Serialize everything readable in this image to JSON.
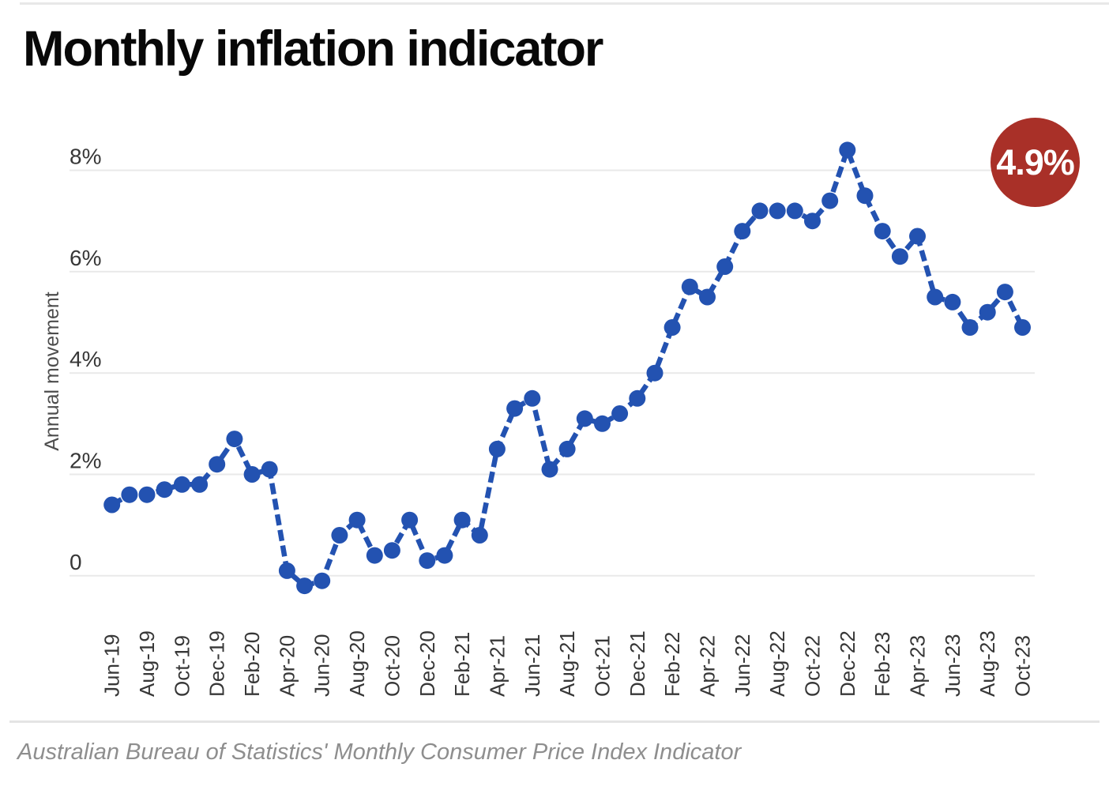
{
  "page": {
    "title": "Monthly inflation indicator",
    "source_note": "Australian Bureau of Statistics' Monthly Consumer Price Index Indicator"
  },
  "badge": {
    "label": "4.9%",
    "background_color": "#a93028",
    "text_color": "#ffffff"
  },
  "chart_data": {
    "type": "line",
    "title": "Monthly inflation indicator",
    "xlabel": "",
    "ylabel": "Annual movement",
    "x": [
      "Jun-19",
      "Jul-19",
      "Aug-19",
      "Sep-19",
      "Oct-19",
      "Nov-19",
      "Dec-19",
      "Jan-20",
      "Feb-20",
      "Mar-20",
      "Apr-20",
      "May-20",
      "Jun-20",
      "Jul-20",
      "Aug-20",
      "Sep-20",
      "Oct-20",
      "Nov-20",
      "Dec-20",
      "Jan-21",
      "Feb-21",
      "Mar-21",
      "Apr-21",
      "May-21",
      "Jun-21",
      "Jul-21",
      "Aug-21",
      "Sep-21",
      "Oct-21",
      "Nov-21",
      "Dec-21",
      "Jan-22",
      "Feb-22",
      "Mar-22",
      "Apr-22",
      "May-22",
      "Jun-22",
      "Jul-22",
      "Aug-22",
      "Sep-22",
      "Oct-22",
      "Nov-22",
      "Dec-22",
      "Jan-23",
      "Feb-23",
      "Mar-23",
      "Apr-23",
      "May-23",
      "Jun-23",
      "Jul-23",
      "Aug-23",
      "Sep-23",
      "Oct-23"
    ],
    "values": [
      1.4,
      1.6,
      1.6,
      1.7,
      1.8,
      1.8,
      2.2,
      2.7,
      2.0,
      2.1,
      0.1,
      -0.2,
      -0.1,
      0.8,
      1.1,
      0.4,
      0.5,
      1.1,
      0.3,
      0.4,
      1.1,
      0.8,
      2.5,
      3.3,
      3.5,
      2.1,
      2.5,
      3.1,
      3.0,
      3.2,
      3.5,
      4.0,
      4.9,
      5.7,
      5.5,
      6.1,
      6.8,
      7.2,
      7.2,
      7.2,
      7.0,
      7.4,
      8.4,
      7.5,
      6.8,
      6.3,
      6.7,
      5.5,
      5.4,
      4.9,
      5.2,
      5.6,
      4.9
    ],
    "x_tick_every": 2,
    "x_tick_labels": [
      "Jun-19",
      "Aug-19",
      "Oct-19",
      "Dec-19",
      "Feb-20",
      "Apr-20",
      "Jun-20",
      "Aug-20",
      "Oct-20",
      "Dec-20",
      "Feb-21",
      "Apr-21",
      "Jun-21",
      "Aug-21",
      "Oct-21",
      "Dec-21",
      "Feb-22",
      "Apr-22",
      "Jun-22",
      "Aug-22",
      "Oct-22",
      "Dec-22",
      "Feb-23",
      "Apr-23",
      "Jun-23",
      "Aug-23",
      "Oct-23"
    ],
    "y_ticks": [
      {
        "label": "8%",
        "value": 8
      },
      {
        "label": "6%",
        "value": 6
      },
      {
        "label": "4%",
        "value": 4
      },
      {
        "label": "2%",
        "value": 2
      },
      {
        "label": "0",
        "value": 0
      }
    ],
    "ylim": [
      -0.6,
      8.8
    ],
    "grid": "horizontal",
    "legend": "none",
    "line_color": "#2352b1",
    "marker_color": "#2352b1",
    "grid_color": "#e9e9e9",
    "tick_label_color": "#373737",
    "last_value_label": "4.9%"
  }
}
